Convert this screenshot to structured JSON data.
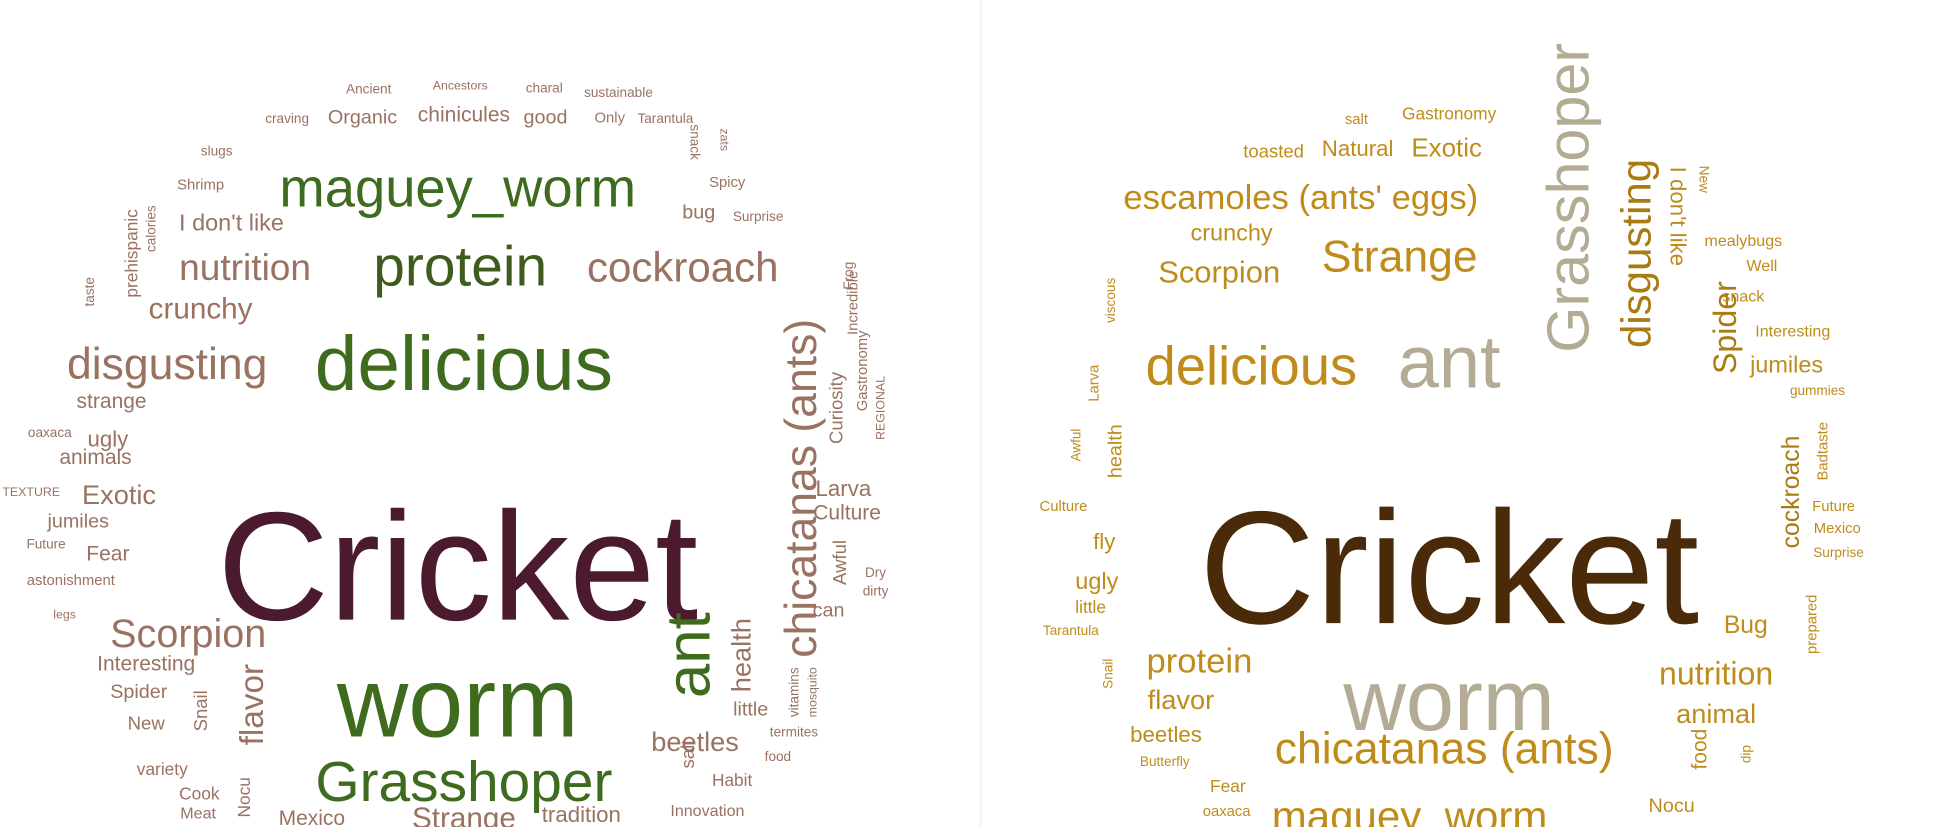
{
  "clouds": [
    {
      "words": [
        "Cricket",
        "worm",
        "delicious",
        "maguey_worm",
        "protein",
        "Grasshoper",
        "ant",
        "chicatanas (ants)",
        "cockroach",
        "nutrition",
        "disgusting",
        "Scorpion",
        "crunchy",
        "I don't like",
        "Shrimp",
        "slugs",
        "Organic",
        "chinicules",
        "good",
        "Only",
        "Tarantula",
        "craving",
        "Ancient",
        "Ancestors",
        "charal",
        "sustainable",
        "bug",
        "Surprise",
        "Spicy",
        "snack",
        "zats",
        "prehispanic",
        "calories",
        "taste",
        "strange",
        "ugly",
        "oaxaca",
        "animals",
        "TEXTURE",
        "Exotic",
        "jumiles",
        "Future",
        "Fear",
        "astonishment",
        "legs",
        "Interesting",
        "Spider",
        "New",
        "Snail",
        "flavor",
        "variety",
        "Cook",
        "Meat",
        "Nocu",
        "Mexico",
        "Strange",
        "tradition",
        "Innovation",
        "salt",
        "Habit",
        "food",
        "termites",
        "beetles",
        "little",
        "health",
        "vitamins",
        "mosquito",
        "can",
        "Awful",
        "dirty",
        "Dry",
        "Culture",
        "Larva",
        "Curiosity",
        "Incredible",
        "Gastronomy",
        "Frog",
        "REGIONAL"
      ]
    },
    {
      "words": [
        "Cricket",
        "worm",
        "ant",
        "delicious",
        "Grasshoper",
        "disgusting",
        "I don't like",
        "New",
        "escamoles (ants' eggs)",
        "Strange",
        "Scorpion",
        "crunchy",
        "toasted",
        "Natural",
        "Exotic",
        "salt",
        "Gastronomy",
        "mealybugs",
        "Well",
        "Spider",
        "snack",
        "Interesting",
        "jumiles",
        "gummies",
        "cockroach",
        "Badtaste",
        "Future",
        "Mexico",
        "Surprise",
        "prepared",
        "Bug",
        "nutrition",
        "animal",
        "food",
        "dip",
        "Nocu",
        "viscous",
        "Larva",
        "health",
        "Awful",
        "Culture",
        "fly",
        "ugly",
        "little",
        "Tarantula",
        "Snail",
        "protein",
        "flavor",
        "beetles",
        "Butterfly",
        "Fear",
        "oaxaca",
        "chicatanas (ants)",
        "maguey_worm"
      ]
    }
  ]
}
